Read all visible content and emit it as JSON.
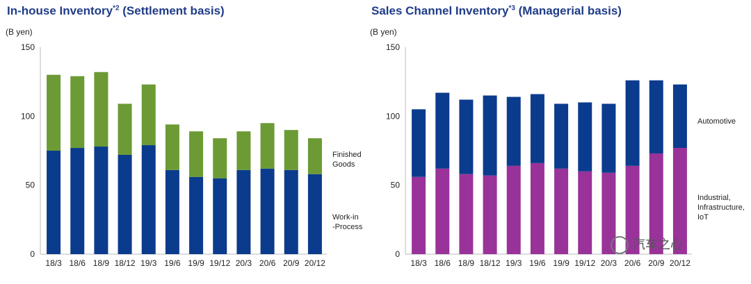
{
  "colors": {
    "blue": "#0b3b8c",
    "green": "#6c9a35",
    "magenta": "#993399",
    "axis": "#bbbbbb",
    "title": "#1f3c88"
  },
  "watermark": "汽车之心",
  "chart_data": [
    {
      "type": "bar",
      "stacked": true,
      "title": "In-house Inventory",
      "title_sup": "*2",
      "title_suffix": "(Settlement basis)",
      "unit_label": "(B yen)",
      "ylim": [
        0,
        150
      ],
      "yticks": [
        0,
        50,
        100,
        150
      ],
      "categories": [
        "18/3",
        "18/6",
        "18/9",
        "18/12",
        "19/3",
        "19/6",
        "19/9",
        "19/12",
        "20/3",
        "20/6",
        "20/9",
        "20/12"
      ],
      "series": [
        {
          "name": "Work-in-Process",
          "label_lines": [
            "Work-in",
            "-Process"
          ],
          "color": "#0b3b8c",
          "values": [
            75,
            77,
            78,
            72,
            79,
            61,
            56,
            55,
            61,
            62,
            61,
            58
          ]
        },
        {
          "name": "Finished Goods",
          "label_lines": [
            "Finished",
            "Goods"
          ],
          "color": "#6c9a35",
          "values": [
            55,
            52,
            54,
            37,
            44,
            33,
            33,
            29,
            28,
            33,
            29,
            26
          ]
        }
      ]
    },
    {
      "type": "bar",
      "stacked": true,
      "title": "Sales Channel Inventory",
      "title_sup": "*3",
      "title_suffix": "(Managerial basis)",
      "unit_label": "(B yen)",
      "ylim": [
        0,
        150
      ],
      "yticks": [
        0,
        50,
        100,
        150
      ],
      "categories": [
        "18/3",
        "18/6",
        "18/9",
        "18/12",
        "19/3",
        "19/6",
        "19/9",
        "19/12",
        "20/3",
        "20/6",
        "20/9",
        "20/12"
      ],
      "series": [
        {
          "name": "Industrial, Infrastructure, IoT",
          "label_lines": [
            "Industrial,",
            "Infrastructure,",
            "IoT"
          ],
          "color": "#993399",
          "values": [
            56,
            62,
            58,
            57,
            64,
            66,
            62,
            60,
            59,
            64,
            73,
            77
          ]
        },
        {
          "name": "Automotive",
          "label_lines": [
            "Automotive"
          ],
          "color": "#0b3b8c",
          "values": [
            49,
            55,
            54,
            58,
            50,
            50,
            47,
            50,
            50,
            62,
            53,
            46
          ]
        }
      ]
    }
  ]
}
